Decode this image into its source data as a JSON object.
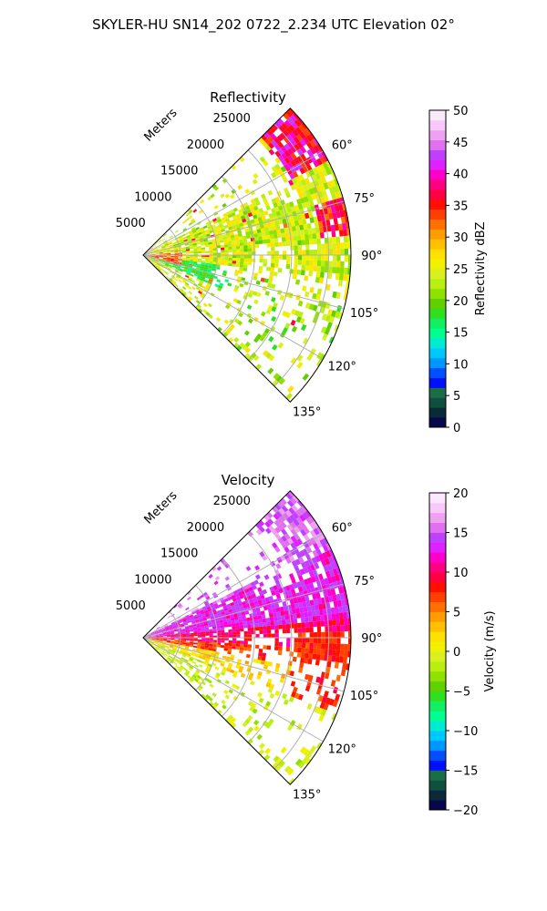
{
  "figure": {
    "suptitle": "SKYLER-HU  SN14_202  0722_2.234 UTC Elevation 02°"
  },
  "chart_data": [
    {
      "type": "polar_sector",
      "title": "Reflectivity",
      "radial_label": "Meters",
      "radial_ticks": [
        5000,
        10000,
        15000,
        20000,
        25000
      ],
      "radial_tick_labels": [
        "5000",
        "10000",
        "15000",
        "20000",
        "25000"
      ],
      "rmax": 28000,
      "theta_range_deg": [
        45,
        135
      ],
      "theta_ticks_deg": [
        60,
        75,
        90,
        105,
        120,
        135
      ],
      "theta_tick_labels": [
        "60°",
        "75°",
        "90°",
        "105°",
        "120°",
        "135°"
      ],
      "grid": true,
      "colorbar": {
        "label": "Reflectivity dBZ",
        "vmin": 0,
        "vmax": 50,
        "ticks": [
          0,
          5,
          10,
          15,
          20,
          25,
          30,
          35,
          40,
          45,
          50
        ],
        "tick_labels": [
          "0",
          "5",
          "10",
          "15",
          "20",
          "25",
          "30",
          "35",
          "40",
          "45",
          "50"
        ]
      }
    },
    {
      "type": "polar_sector",
      "title": "Velocity",
      "radial_label": "Meters",
      "radial_ticks": [
        5000,
        10000,
        15000,
        20000,
        25000
      ],
      "radial_tick_labels": [
        "5000",
        "10000",
        "15000",
        "20000",
        "25000"
      ],
      "rmax": 28000,
      "theta_range_deg": [
        45,
        135
      ],
      "theta_ticks_deg": [
        60,
        75,
        90,
        105,
        120,
        135
      ],
      "theta_tick_labels": [
        "60°",
        "75°",
        "90°",
        "105°",
        "120°",
        "135°"
      ],
      "grid": true,
      "colorbar": {
        "label": "Velocity (m/s)",
        "vmin": -20,
        "vmax": 20,
        "ticks": [
          -20,
          -15,
          -10,
          -5,
          0,
          5,
          10,
          15,
          20
        ],
        "tick_labels": [
          "−20",
          "−15",
          "−10",
          "−5",
          "0",
          "5",
          "10",
          "15",
          "20"
        ]
      }
    }
  ],
  "colormap": [
    "#06084a",
    "#0a2a3a",
    "#10503f",
    "#1a6e45",
    "#0010ff",
    "#0050ff",
    "#0096ff",
    "#00c8ff",
    "#00ecd0",
    "#00ff90",
    "#10f060",
    "#30e020",
    "#60d000",
    "#90e000",
    "#b8ee10",
    "#d8f020",
    "#f0f000",
    "#ffe000",
    "#ffc000",
    "#ff9c00",
    "#ff7000",
    "#ff4000",
    "#ff1000",
    "#ff0040",
    "#ff0080",
    "#ff00c8",
    "#e020ff",
    "#c040ff",
    "#e070f0",
    "#f0a0f0",
    "#f8c8f8",
    "#fce8fc"
  ]
}
